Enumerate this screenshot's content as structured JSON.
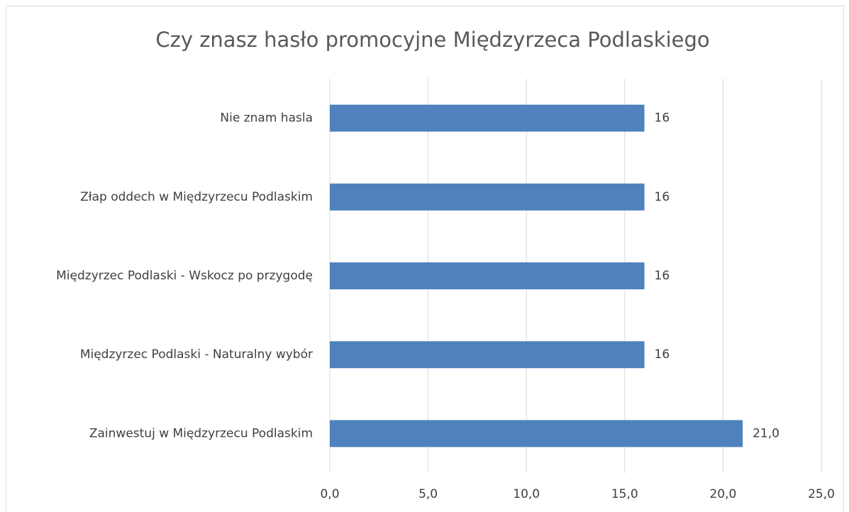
{
  "chart_data": {
    "type": "barh",
    "title": "Czy znasz hasło promocyjne Międzyrzeca Podlaskiego",
    "categories": [
      "Nie znam hasla",
      "Złap oddech w Międzyrzecu Podlaskim",
      "Międzyrzec Podlaski - Wskocz po przygodę",
      "Międzyrzec Podlaski - Naturalny wybór",
      "Zainwestuj w Międzyrzecu Podlaskim"
    ],
    "values": [
      16,
      16,
      16,
      16,
      21
    ],
    "value_labels": [
      "16",
      "16",
      "16",
      "16",
      "21,0"
    ],
    "color": "#4f81bd",
    "xlim": [
      0,
      25
    ],
    "xticks": [
      {
        "value": 0,
        "label": "0,0"
      },
      {
        "value": 5,
        "label": "5,0"
      },
      {
        "value": 10,
        "label": "10,0"
      },
      {
        "value": 15,
        "label": "15,0"
      },
      {
        "value": 20,
        "label": "20,0"
      },
      {
        "value": 25,
        "label": "25,0"
      }
    ],
    "grid": true
  }
}
